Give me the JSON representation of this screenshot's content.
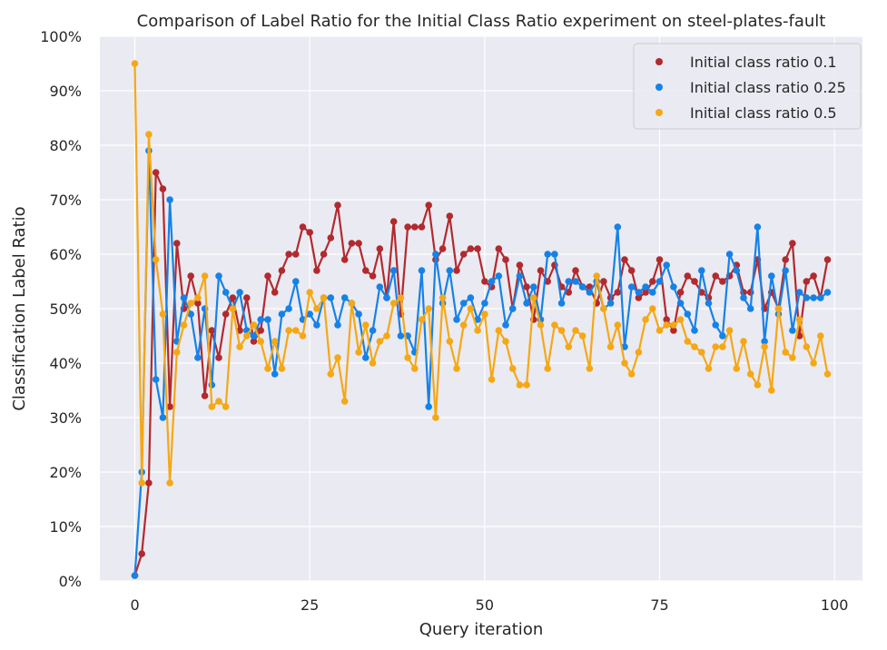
{
  "chart_data": {
    "type": "line",
    "title": "Comparison of Label Ratio for the Initial Class Ratio experiment on steel-plates-fault",
    "xlabel": "Query iteration",
    "ylabel": "Classification Label Ratio",
    "xlim": [
      -5,
      104
    ],
    "ylim": [
      0,
      1
    ],
    "xticks": [
      0,
      25,
      50,
      75,
      100
    ],
    "yticks": [
      0,
      0.1,
      0.2,
      0.3,
      0.4,
      0.5,
      0.6,
      0.7,
      0.8,
      0.9,
      1.0
    ],
    "ytick_labels": [
      "0%",
      "10%",
      "20%",
      "30%",
      "40%",
      "50%",
      "60%",
      "70%",
      "80%",
      "90%",
      "100%"
    ],
    "grid": true,
    "legend_position": "top-right",
    "background": "#eaeaf2",
    "series": [
      {
        "name": "Initial class ratio 0.1",
        "color": "#b22a2e",
        "values": [
          0.01,
          0.05,
          0.18,
          0.75,
          0.72,
          0.32,
          0.62,
          0.5,
          0.56,
          0.51,
          0.34,
          0.46,
          0.41,
          0.49,
          0.52,
          0.46,
          0.52,
          0.44,
          0.46,
          0.56,
          0.53,
          0.57,
          0.6,
          0.6,
          0.65,
          0.64,
          0.57,
          0.6,
          0.63,
          0.69,
          0.59,
          0.62,
          0.62,
          0.57,
          0.56,
          0.61,
          0.52,
          0.66,
          0.49,
          0.65,
          0.65,
          0.65,
          0.69,
          0.59,
          0.61,
          0.67,
          0.57,
          0.6,
          0.61,
          0.61,
          0.55,
          0.54,
          0.61,
          0.59,
          0.5,
          0.58,
          0.54,
          0.48,
          0.57,
          0.55,
          0.58,
          0.54,
          0.53,
          0.57,
          0.54,
          0.54,
          0.51,
          0.55,
          0.52,
          0.53,
          0.59,
          0.57,
          0.52,
          0.53,
          0.55,
          0.59,
          0.48,
          0.46,
          0.53,
          0.56,
          0.55,
          0.53,
          0.52,
          0.56,
          0.55,
          0.56,
          0.58,
          0.53,
          0.53,
          0.59,
          0.5,
          0.53,
          0.5,
          0.59,
          0.62,
          0.45,
          0.55,
          0.56,
          0.52,
          0.59
        ]
      },
      {
        "name": "Initial class ratio 0.25",
        "color": "#1582e8",
        "values": [
          0.01,
          0.2,
          0.79,
          0.37,
          0.3,
          0.7,
          0.44,
          0.52,
          0.49,
          0.41,
          0.5,
          0.36,
          0.56,
          0.53,
          0.5,
          0.53,
          0.46,
          0.45,
          0.48,
          0.48,
          0.38,
          0.49,
          0.5,
          0.55,
          0.48,
          0.49,
          0.47,
          0.52,
          0.52,
          0.47,
          0.52,
          0.51,
          0.49,
          0.41,
          0.46,
          0.54,
          0.52,
          0.57,
          0.45,
          0.45,
          0.42,
          0.57,
          0.32,
          0.6,
          0.51,
          0.57,
          0.48,
          0.51,
          0.52,
          0.48,
          0.51,
          0.55,
          0.56,
          0.47,
          0.5,
          0.56,
          0.51,
          0.54,
          0.48,
          0.6,
          0.6,
          0.51,
          0.55,
          0.55,
          0.54,
          0.53,
          0.55,
          0.5,
          0.51,
          0.65,
          0.43,
          0.54,
          0.53,
          0.54,
          0.53,
          0.55,
          0.58,
          0.54,
          0.51,
          0.49,
          0.46,
          0.57,
          0.51,
          0.47,
          0.45,
          0.6,
          0.57,
          0.52,
          0.5,
          0.65,
          0.44,
          0.56,
          0.49,
          0.57,
          0.46,
          0.53,
          0.52,
          0.52,
          0.52,
          0.53
        ]
      },
      {
        "name": "Initial class ratio 0.5",
        "color": "#f5a815",
        "values": [
          0.95,
          0.18,
          0.82,
          0.59,
          0.49,
          0.18,
          0.42,
          0.47,
          0.51,
          0.52,
          0.56,
          0.32,
          0.33,
          0.32,
          0.5,
          0.43,
          0.45,
          0.47,
          0.44,
          0.39,
          0.44,
          0.39,
          0.46,
          0.46,
          0.45,
          0.53,
          0.5,
          0.52,
          0.38,
          0.41,
          0.33,
          0.51,
          0.42,
          0.47,
          0.4,
          0.44,
          0.45,
          0.51,
          0.52,
          0.41,
          0.39,
          0.48,
          0.5,
          0.3,
          0.52,
          0.44,
          0.39,
          0.47,
          0.5,
          0.46,
          0.49,
          0.37,
          0.46,
          0.44,
          0.39,
          0.36,
          0.36,
          0.52,
          0.47,
          0.39,
          0.47,
          0.46,
          0.43,
          0.46,
          0.45,
          0.39,
          0.56,
          0.5,
          0.43,
          0.47,
          0.4,
          0.38,
          0.42,
          0.48,
          0.5,
          0.46,
          0.47,
          0.47,
          0.48,
          0.44,
          0.43,
          0.42,
          0.39,
          0.43,
          0.43,
          0.46,
          0.39,
          0.44,
          0.38,
          0.36,
          0.43,
          0.35,
          0.5,
          0.42,
          0.41,
          0.48,
          0.43,
          0.4,
          0.45,
          0.38
        ]
      }
    ]
  }
}
